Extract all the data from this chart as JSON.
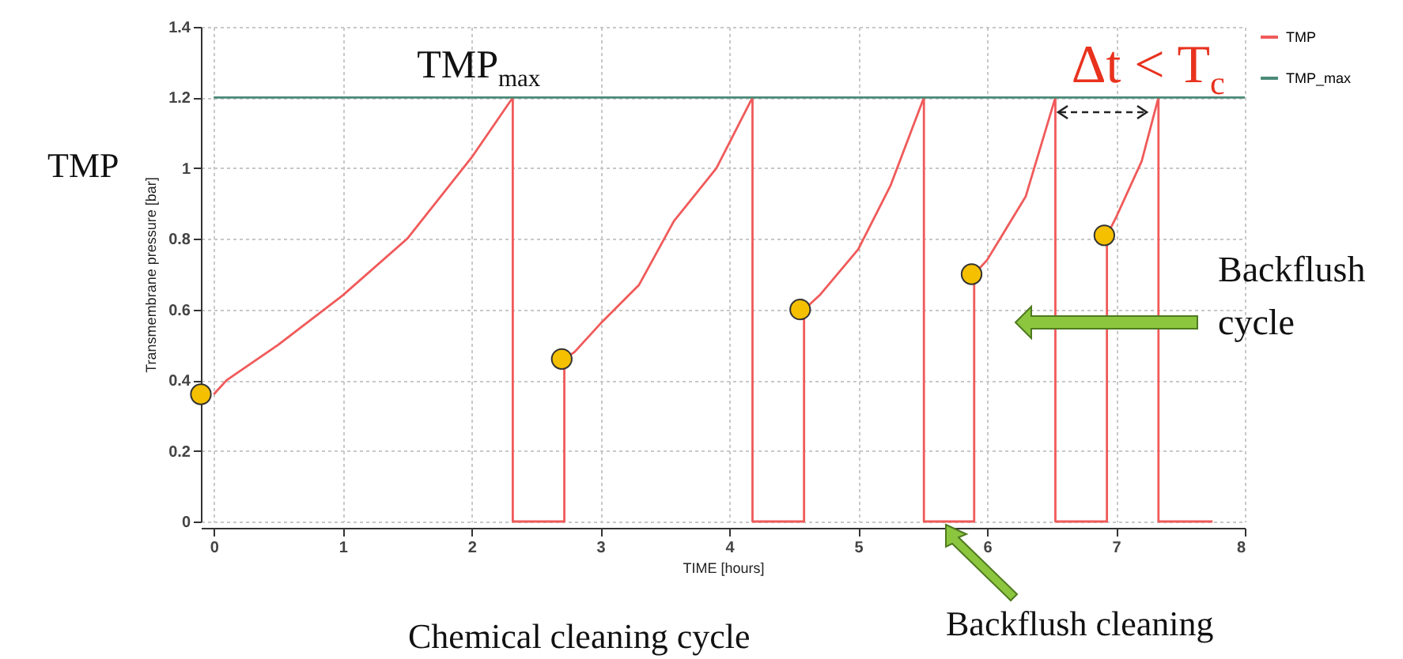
{
  "chart_data": {
    "type": "line",
    "xlabel": "TIME [hours]",
    "ylabel": "Transmembrane pressure [bar]",
    "xlim": [
      -0.1,
      8
    ],
    "ylim": [
      0,
      1.4
    ],
    "xticks": [
      0,
      1,
      2,
      3,
      4,
      5,
      6,
      7,
      8
    ],
    "yticks": [
      0,
      0.2,
      0.4,
      0.6,
      0.8,
      1,
      1.2,
      1.4
    ],
    "grid": true,
    "legend": "top right",
    "series": [
      {
        "name": "TMP",
        "color": "#f05a5a",
        "x": [
          0,
          0.1,
          0.5,
          1,
          1.5,
          2,
          2.32,
          2.32,
          2.72,
          2.72,
          2.8,
          3,
          3.3,
          3.57,
          3.9,
          4.18,
          4.18,
          4.58,
          4.58,
          4.7,
          5,
          5.25,
          5.51,
          5.51,
          5.9,
          5.9,
          6,
          6.3,
          6.53,
          6.53,
          6.93,
          6.93,
          7,
          7.2,
          7.33,
          7.33,
          7.75
        ],
        "values": [
          0.36,
          0.4,
          0.5,
          0.64,
          0.8,
          1.03,
          1.2,
          0,
          0,
          0.46,
          0.48,
          0.56,
          0.67,
          0.85,
          1,
          1.2,
          0,
          0,
          0.6,
          0.64,
          0.77,
          0.95,
          1.2,
          0,
          0,
          0.7,
          0.74,
          0.92,
          1.2,
          0,
          0,
          0.81,
          0.86,
          1.02,
          1.2,
          0,
          0
        ]
      },
      {
        "name": "TMP_max",
        "color": "#4a8a78",
        "x": [
          0,
          8
        ],
        "values": [
          1.2,
          1.2
        ]
      },
      {
        "type": "scatter",
        "color": "#f5c000",
        "x": [
          -0.1,
          2.7,
          4.55,
          5.88,
          6.91
        ],
        "values": [
          0.36,
          0.46,
          0.6,
          0.7,
          0.81
        ]
      }
    ],
    "annotations": [
      "TMP$_{max}$",
      "Δt < T$_{c}$",
      "TMP",
      "Backflush cycle",
      "Backflush cleaning",
      "Chemical cleaning cycle"
    ]
  }
}
